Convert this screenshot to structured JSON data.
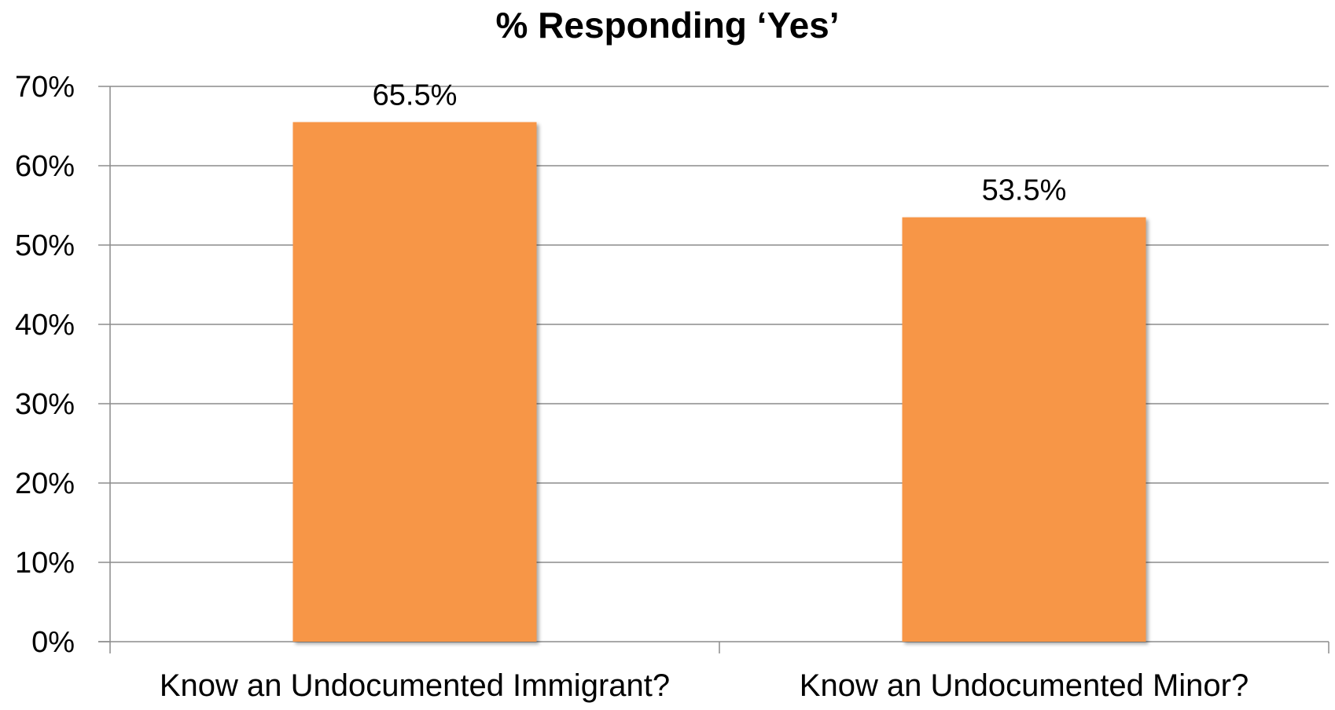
{
  "chart_data": {
    "type": "bar",
    "title": "% Responding ‘Yes’",
    "xlabel": "",
    "ylabel": "",
    "categories": [
      "Know an Undocumented Immigrant?",
      "Know an Undocumented Minor?"
    ],
    "values": [
      65.5,
      53.5
    ],
    "data_labels": [
      "65.5%",
      "53.5%"
    ],
    "ylim": [
      0,
      70
    ],
    "yticks": [
      0,
      10,
      20,
      30,
      40,
      50,
      60,
      70
    ],
    "ytick_labels": [
      "0%",
      "10%",
      "20%",
      "30%",
      "40%",
      "50%",
      "60%",
      "70%"
    ],
    "grid": true,
    "legend": "none",
    "bar_color": "#F79646",
    "gridline_color": "#8C8C8C"
  }
}
